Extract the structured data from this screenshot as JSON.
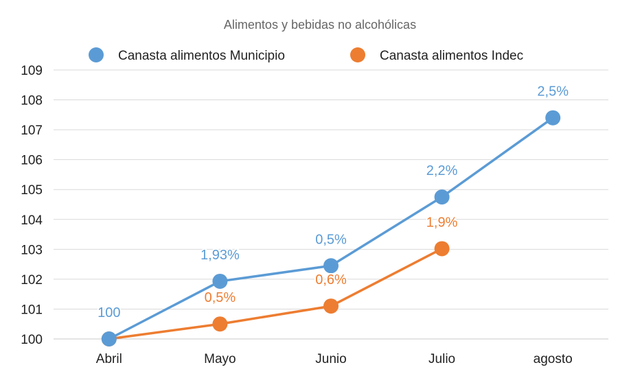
{
  "chart_data": {
    "type": "line",
    "title": "Alimentos y bebidas no alcohólicas",
    "categories": [
      "Abril",
      "Mayo",
      "Junio",
      "Julio",
      "agosto"
    ],
    "y_ticks": [
      "100",
      "101",
      "102",
      "103",
      "104",
      "105",
      "106",
      "107",
      "108",
      "109"
    ],
    "ylim": [
      100,
      109
    ],
    "grid": true,
    "legend_position": "top",
    "series": [
      {
        "name": "Canasta alimentos Municipio",
        "color": "#5b9bd5",
        "values": [
          100,
          101.93,
          102.45,
          104.75,
          107.4
        ],
        "labels": [
          "100",
          "1,93%",
          "0,5%",
          "2,2%",
          "2,5%"
        ]
      },
      {
        "name": "Canasta alimentos Indec",
        "color": "#ed7d31",
        "values": [
          100,
          100.5,
          101.1,
          103.02,
          null
        ],
        "labels": [
          "",
          "0,5%",
          "0,6%",
          "1,9%",
          ""
        ]
      }
    ]
  }
}
